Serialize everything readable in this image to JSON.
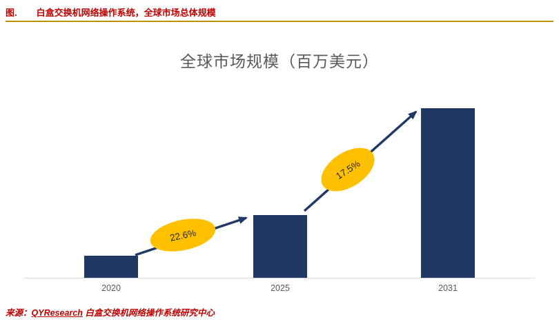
{
  "header": {
    "figure_label": "图.",
    "title": "白盒交换机网络操作系统，全球市场总体规模"
  },
  "chart_data": {
    "type": "bar",
    "title": "全球市场规模（百万美元）",
    "categories": [
      "2020",
      "2025",
      "2031"
    ],
    "values": [
      13,
      37,
      100
    ],
    "values_relative": true,
    "annotations": [
      {
        "label": "22.6%",
        "from": "2020",
        "to": "2025"
      },
      {
        "label": "17.5%",
        "from": "2025",
        "to": "2031"
      }
    ],
    "bar_color": "#1F3864",
    "annotation_fill": "#FFC000",
    "legend": false,
    "grid": false,
    "xlabel": "",
    "ylabel": ""
  },
  "footer": {
    "source_prefix": "来源：",
    "source_name": "QYResearch",
    "source_suffix": " 白盒交换机网络操作系统研究中心"
  },
  "colors": {
    "header_red": "#C00000",
    "divider_gold": "#BF9000",
    "bar_navy": "#1F3864",
    "ellipse_gold": "#FFC000",
    "title_gray": "#595959"
  }
}
